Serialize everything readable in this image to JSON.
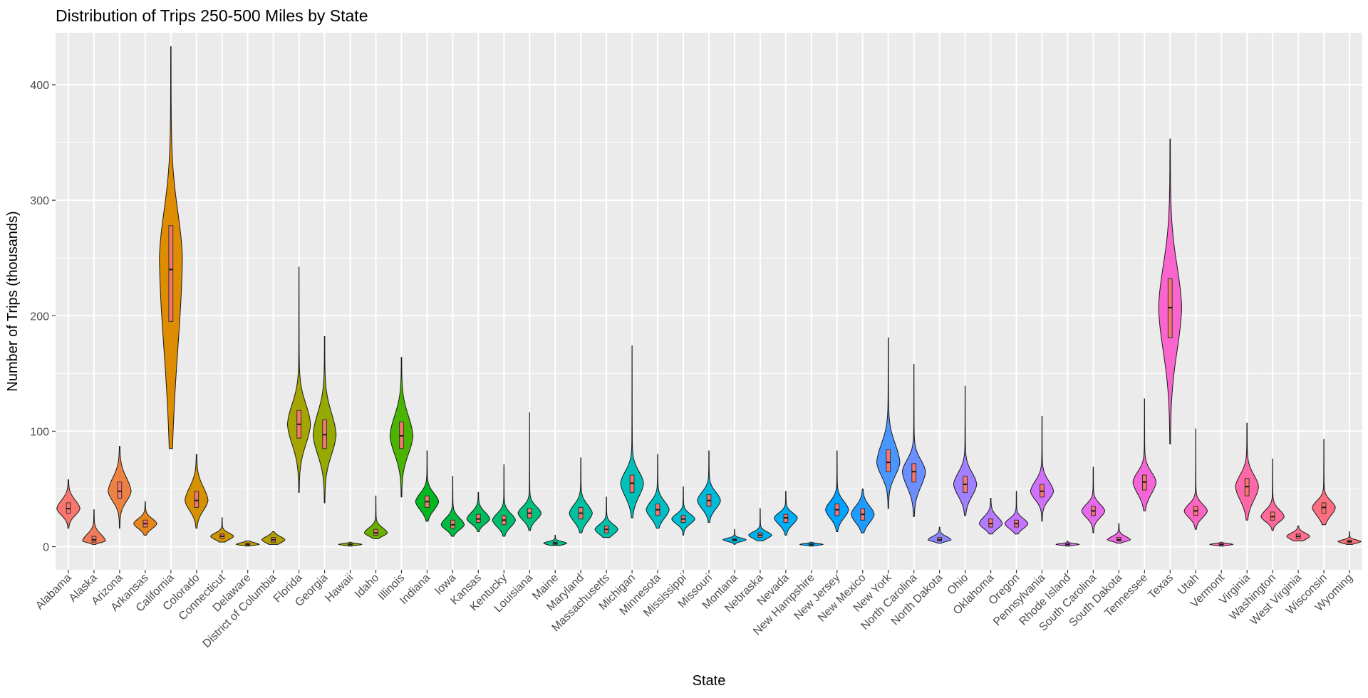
{
  "chart_data": {
    "type": "violin",
    "title": "Distribution of Trips 250-500 Miles by State",
    "xlabel": "State",
    "ylabel": "Number of Trips (thousands)",
    "ylim": [
      -20,
      445
    ],
    "yticks": [
      0,
      100,
      200,
      300,
      400
    ],
    "grid": true,
    "legend": "none",
    "categories": [
      "Alabama",
      "Alaska",
      "Arizona",
      "Arkansas",
      "California",
      "Colorado",
      "Connecticut",
      "Delaware",
      "District of Columbia",
      "Florida",
      "Georgia",
      "Hawaii",
      "Idaho",
      "Illinois",
      "Indiana",
      "Iowa",
      "Kansas",
      "Kentucky",
      "Louisiana",
      "Maine",
      "Maryland",
      "Massachusetts",
      "Michigan",
      "Minnesota",
      "Mississippi",
      "Missouri",
      "Montana",
      "Nebraska",
      "Nevada",
      "New Hampshire",
      "New Jersey",
      "New Mexico",
      "New York",
      "North Carolina",
      "North Dakota",
      "Ohio",
      "Oklahoma",
      "Oregon",
      "Pennsylvania",
      "Rhode Island",
      "South Carolina",
      "South Dakota",
      "Tennessee",
      "Texas",
      "Utah",
      "Vermont",
      "Virginia",
      "Washington",
      "West Virginia",
      "Wisconsin",
      "Wyoming"
    ],
    "series": [
      {
        "state": "Alabama",
        "min": 16,
        "q1": 29,
        "median": 33,
        "q3": 38,
        "max": 58,
        "mode": 33,
        "color": "#F8766D"
      },
      {
        "state": "Alaska",
        "min": 2,
        "q1": 4,
        "median": 6,
        "q3": 9,
        "max": 32,
        "mode": 5,
        "color": "#F37B59"
      },
      {
        "state": "Arizona",
        "min": 16,
        "q1": 42,
        "median": 48,
        "q3": 56,
        "max": 87,
        "mode": 48,
        "color": "#ED8141"
      },
      {
        "state": "Arkansas",
        "min": 10,
        "q1": 17,
        "median": 20,
        "q3": 23,
        "max": 39,
        "mode": 20,
        "color": "#E7861B"
      },
      {
        "state": "California",
        "min": 85,
        "q1": 195,
        "median": 240,
        "q3": 278,
        "max": 433,
        "mode": 250,
        "color": "#DE8C00"
      },
      {
        "state": "Colorado",
        "min": 16,
        "q1": 34,
        "median": 40,
        "q3": 48,
        "max": 80,
        "mode": 40,
        "color": "#D59100"
      },
      {
        "state": "Connecticut",
        "min": 4,
        "q1": 7,
        "median": 9,
        "q3": 11,
        "max": 25,
        "mode": 9,
        "color": "#CB9600"
      },
      {
        "state": "Delaware",
        "min": 0.5,
        "q1": 1.5,
        "median": 2,
        "q3": 3,
        "max": 5,
        "mode": 2,
        "color": "#C09B00"
      },
      {
        "state": "District of Columbia",
        "min": 2,
        "q1": 4,
        "median": 6,
        "q3": 8,
        "max": 13,
        "mode": 6,
        "color": "#B3A000"
      },
      {
        "state": "Florida",
        "min": 47,
        "q1": 94,
        "median": 106,
        "q3": 118,
        "max": 242,
        "mode": 106,
        "color": "#A5A400"
      },
      {
        "state": "Georgia",
        "min": 38,
        "q1": 85,
        "median": 97,
        "q3": 110,
        "max": 182,
        "mode": 97,
        "color": "#95A900"
      },
      {
        "state": "Hawaii",
        "min": 0.5,
        "q1": 1.5,
        "median": 2,
        "q3": 2.5,
        "max": 4,
        "mode": 2,
        "color": "#83AD00"
      },
      {
        "state": "Idaho",
        "min": 7,
        "q1": 10,
        "median": 12,
        "q3": 15,
        "max": 44,
        "mode": 12,
        "color": "#6BB100"
      },
      {
        "state": "Illinois",
        "min": 43,
        "q1": 85,
        "median": 96,
        "q3": 108,
        "max": 164,
        "mode": 96,
        "color": "#4BB400"
      },
      {
        "state": "Indiana",
        "min": 22,
        "q1": 34,
        "median": 39,
        "q3": 44,
        "max": 83,
        "mode": 39,
        "color": "#00B81F"
      },
      {
        "state": "Iowa",
        "min": 9,
        "q1": 16,
        "median": 19,
        "q3": 23,
        "max": 61,
        "mode": 19,
        "color": "#00BA42"
      },
      {
        "state": "Kansas",
        "min": 13,
        "q1": 21,
        "median": 24,
        "q3": 28,
        "max": 47,
        "mode": 24,
        "color": "#00BC5A"
      },
      {
        "state": "Kentucky",
        "min": 9,
        "q1": 19,
        "median": 23,
        "q3": 27,
        "max": 71,
        "mode": 23,
        "color": "#00BE6D"
      },
      {
        "state": "Louisiana",
        "min": 14,
        "q1": 25,
        "median": 29,
        "q3": 33,
        "max": 116,
        "mode": 29,
        "color": "#00C07E"
      },
      {
        "state": "Maine",
        "min": 1,
        "q1": 2,
        "median": 3,
        "q3": 4,
        "max": 10,
        "mode": 3,
        "color": "#00C08E"
      },
      {
        "state": "Maryland",
        "min": 12,
        "q1": 24,
        "median": 29,
        "q3": 34,
        "max": 77,
        "mode": 29,
        "color": "#00C19D"
      },
      {
        "state": "Massachusetts",
        "min": 8,
        "q1": 12,
        "median": 15,
        "q3": 18,
        "max": 43,
        "mode": 15,
        "color": "#00C1AA"
      },
      {
        "state": "Michigan",
        "min": 25,
        "q1": 47,
        "median": 55,
        "q3": 62,
        "max": 174,
        "mode": 55,
        "color": "#00C0B8"
      },
      {
        "state": "Minnesota",
        "min": 16,
        "q1": 27,
        "median": 32,
        "q3": 37,
        "max": 80,
        "mode": 32,
        "color": "#00BFC4"
      },
      {
        "state": "Mississippi",
        "min": 10,
        "q1": 21,
        "median": 24,
        "q3": 27,
        "max": 52,
        "mode": 24,
        "color": "#00BDCF"
      },
      {
        "state": "Missouri",
        "min": 21,
        "q1": 35,
        "median": 40,
        "q3": 45,
        "max": 83,
        "mode": 40,
        "color": "#00BADA"
      },
      {
        "state": "Montana",
        "min": 2,
        "q1": 5,
        "median": 6,
        "q3": 7,
        "max": 15,
        "mode": 6,
        "color": "#00B7E4"
      },
      {
        "state": "Nebraska",
        "min": 5,
        "q1": 8,
        "median": 10,
        "q3": 12,
        "max": 33,
        "mode": 10,
        "color": "#00B3ED"
      },
      {
        "state": "Nevada",
        "min": 10,
        "q1": 21,
        "median": 25,
        "q3": 28,
        "max": 48,
        "mode": 25,
        "color": "#00AEF5"
      },
      {
        "state": "New Hampshire",
        "min": 0.5,
        "q1": 1.5,
        "median": 2,
        "q3": 2.5,
        "max": 4,
        "mode": 2,
        "color": "#00A9FB"
      },
      {
        "state": "New Jersey",
        "min": 13,
        "q1": 27,
        "median": 32,
        "q3": 37,
        "max": 83,
        "mode": 32,
        "color": "#00A3FF"
      },
      {
        "state": "New Mexico",
        "min": 12,
        "q1": 23,
        "median": 28,
        "q3": 33,
        "max": 50,
        "mode": 28,
        "color": "#1E9CFF"
      },
      {
        "state": "New York",
        "min": 33,
        "q1": 65,
        "median": 73,
        "q3": 84,
        "max": 181,
        "mode": 73,
        "color": "#4996FF"
      },
      {
        "state": "North Carolina",
        "min": 26,
        "q1": 56,
        "median": 65,
        "q3": 72,
        "max": 158,
        "mode": 65,
        "color": "#6C8EFF"
      },
      {
        "state": "North Dakota",
        "min": 3,
        "q1": 5,
        "median": 6,
        "q3": 8,
        "max": 17,
        "mode": 6,
        "color": "#8A87FF"
      },
      {
        "state": "Ohio",
        "min": 27,
        "q1": 47,
        "median": 54,
        "q3": 61,
        "max": 139,
        "mode": 54,
        "color": "#A180FF"
      },
      {
        "state": "Oklahoma",
        "min": 11,
        "q1": 17,
        "median": 20,
        "q3": 24,
        "max": 42,
        "mode": 20,
        "color": "#B47AFF"
      },
      {
        "state": "Oregon",
        "min": 11,
        "q1": 17,
        "median": 20,
        "q3": 23,
        "max": 48,
        "mode": 20,
        "color": "#C475FF"
      },
      {
        "state": "Pennsylvania",
        "min": 22,
        "q1": 43,
        "median": 48,
        "q3": 54,
        "max": 113,
        "mode": 48,
        "color": "#D170FB"
      },
      {
        "state": "Rhode Island",
        "min": 0.5,
        "q1": 1.5,
        "median": 2,
        "q3": 2.5,
        "max": 5,
        "mode": 2,
        "color": "#DC6CF3"
      },
      {
        "state": "South Carolina",
        "min": 12,
        "q1": 27,
        "median": 31,
        "q3": 35,
        "max": 69,
        "mode": 31,
        "color": "#E66AEB"
      },
      {
        "state": "South Dakota",
        "min": 3,
        "q1": 5,
        "median": 6,
        "q3": 8,
        "max": 20,
        "mode": 6,
        "color": "#EE68E2"
      },
      {
        "state": "Tennessee",
        "min": 31,
        "q1": 49,
        "median": 56,
        "q3": 62,
        "max": 128,
        "mode": 56,
        "color": "#F466D8"
      },
      {
        "state": "Texas",
        "min": 89,
        "q1": 181,
        "median": 207,
        "q3": 232,
        "max": 353,
        "mode": 207,
        "color": "#F965CD"
      },
      {
        "state": "Utah",
        "min": 15,
        "q1": 27,
        "median": 31,
        "q3": 35,
        "max": 102,
        "mode": 31,
        "color": "#FC65C1"
      },
      {
        "state": "Vermont",
        "min": 0.5,
        "q1": 1.5,
        "median": 2,
        "q3": 2.5,
        "max": 4,
        "mode": 2,
        "color": "#FE67B5"
      },
      {
        "state": "Virginia",
        "min": 23,
        "q1": 44,
        "median": 52,
        "q3": 59,
        "max": 107,
        "mode": 52,
        "color": "#FF68A8"
      },
      {
        "state": "Washington",
        "min": 14,
        "q1": 23,
        "median": 26,
        "q3": 30,
        "max": 76,
        "mode": 26,
        "color": "#FF6A9B"
      },
      {
        "state": "West Virginia",
        "min": 5,
        "q1": 7,
        "median": 9,
        "q3": 11,
        "max": 18,
        "mode": 9,
        "color": "#FF6C8D"
      },
      {
        "state": "Wisconsin",
        "min": 19,
        "q1": 29,
        "median": 34,
        "q3": 38,
        "max": 93,
        "mode": 34,
        "color": "#FE6E80"
      },
      {
        "state": "Wyoming",
        "min": 2,
        "q1": 3.5,
        "median": 4.5,
        "q3": 5.5,
        "max": 13,
        "mode": 4.5,
        "color": "#FC7171"
      }
    ],
    "box_fill": "#F8766D",
    "panel_background": "#EBEBEB"
  }
}
